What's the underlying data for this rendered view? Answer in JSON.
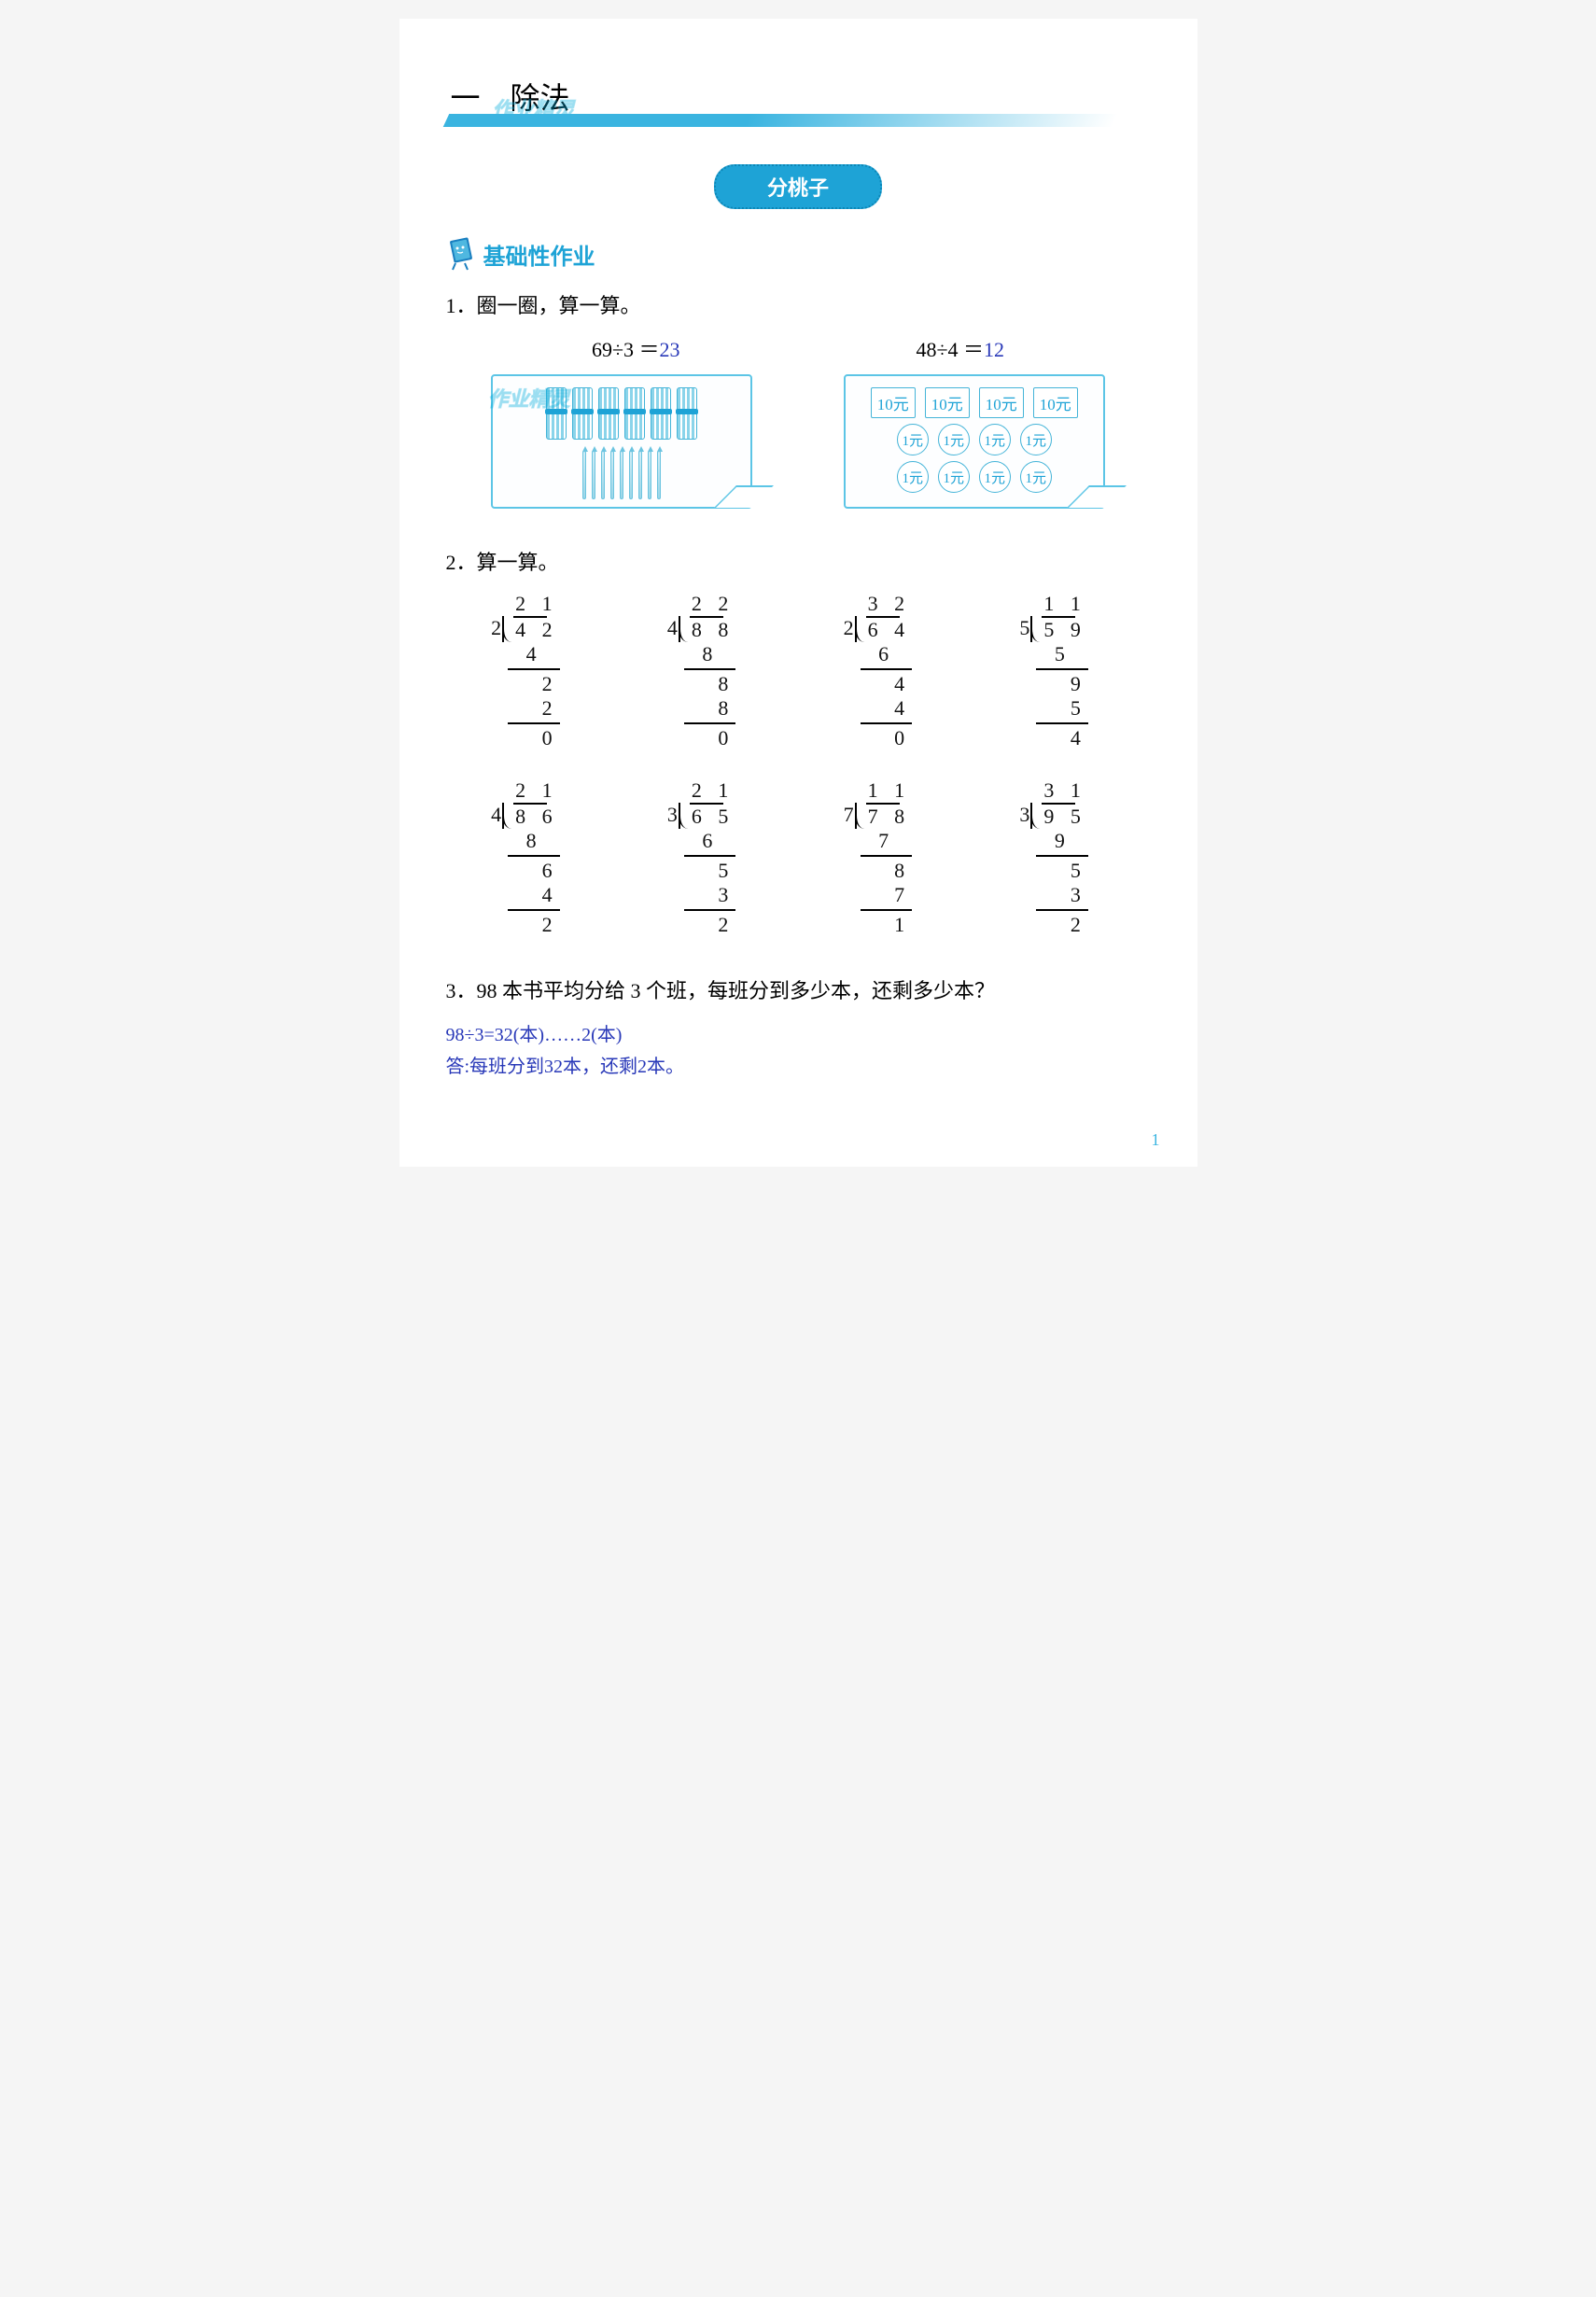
{
  "colors": {
    "accent": "#1ea3d6",
    "accent_light": "#5cc5e6",
    "answer": "#2838b8",
    "text": "#000000",
    "bg": "#ffffff"
  },
  "chapter": {
    "number": "一",
    "title": "除法"
  },
  "watermark_text": "作业精灵",
  "section_pill": "分桃子",
  "hw_label": "基础性作业",
  "q1": {
    "prompt": "1．圈一圈，算一算。",
    "eq1_lhs": "69÷3 ＝",
    "eq1_ans": "23",
    "eq2_lhs": "48÷4 ＝",
    "eq2_ans": "12",
    "bundle_count": 6,
    "pencil_count": 9,
    "bill_label": "10元",
    "bill_count": 4,
    "coin_label": "1元",
    "coin_rows": 2,
    "coin_cols": 4
  },
  "q2": {
    "prompt": "2．算一算。",
    "problems": [
      {
        "divisor": "2",
        "dividend": "4 2",
        "quotient": "2 1",
        "steps": [
          "4",
          "2",
          "2",
          "0"
        ]
      },
      {
        "divisor": "4",
        "dividend": "8 8",
        "quotient": "2 2",
        "steps": [
          "8",
          "8",
          "8",
          "0"
        ]
      },
      {
        "divisor": "2",
        "dividend": "6 4",
        "quotient": "3 2",
        "steps": [
          "6",
          "4",
          "4",
          "0"
        ]
      },
      {
        "divisor": "5",
        "dividend": "5 9",
        "quotient": "1 1",
        "steps": [
          "5",
          "9",
          "5",
          "4"
        ]
      },
      {
        "divisor": "4",
        "dividend": "8 6",
        "quotient": "2 1",
        "steps": [
          "8",
          "6",
          "4",
          "2"
        ]
      },
      {
        "divisor": "3",
        "dividend": "6 5",
        "quotient": "2 1",
        "steps": [
          "6",
          "5",
          "3",
          "2"
        ]
      },
      {
        "divisor": "7",
        "dividend": "7 8",
        "quotient": "1 1",
        "steps": [
          "7",
          "8",
          "7",
          "1"
        ]
      },
      {
        "divisor": "3",
        "dividend": "9 5",
        "quotient": "3 1",
        "steps": [
          "9",
          "5",
          "3",
          "2"
        ]
      }
    ]
  },
  "q3": {
    "prompt": "3．98 本书平均分给 3 个班，每班分到多少本，还剩多少本？",
    "work": "98÷3=32(本)……2(本)",
    "answer": "答:每班分到32本，还剩2本。"
  },
  "page_number": "1"
}
